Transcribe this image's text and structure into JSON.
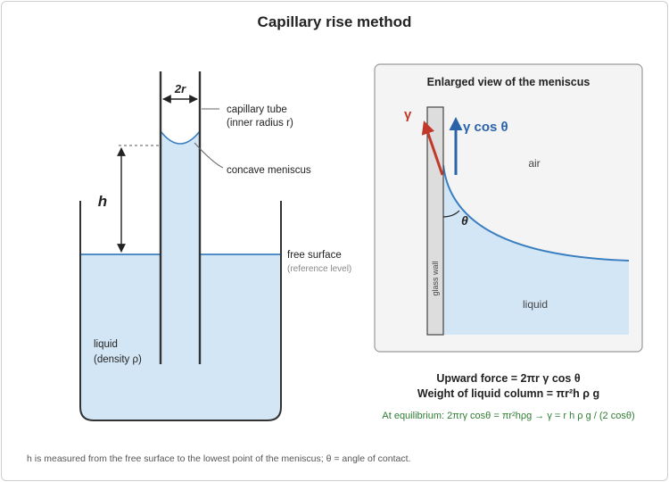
{
  "title": "Capillary rise method",
  "left": {
    "radius_label": "2r",
    "h_label": "h",
    "tube_label_1": "capillary tube",
    "tube_label_2": "(inner radius r)",
    "meniscus_label": "concave meniscus",
    "free_surface_label": "free surface",
    "reference_label": "(reference level)",
    "liquid_label_1": "liquid",
    "liquid_label_2": "(density ρ)"
  },
  "inset": {
    "title": "Enlarged view of the meniscus",
    "gamma_label": "γ",
    "gamma_cos_label": "γ cos θ",
    "air_label": "air",
    "theta_label": "θ",
    "wall_label": "glass wall",
    "liquid_label": "liquid"
  },
  "equations": {
    "upward_force": "Upward force = 2πr γ cos θ",
    "weight": "Weight of liquid column = πr²h ρ g",
    "equilibrium": "At equilibrium: 2πrγ cosθ = πr²hρg → γ = r h ρ g / (2 cosθ)"
  },
  "footnote": "h is measured from the free surface to the lowest point of the meniscus; θ = angle of contact.",
  "colors": {
    "liquid_fill": "#d3e6f6",
    "liquid_line": "#3a7fc0",
    "gamma_arrow": "#c0392b",
    "gamma_cos_arrow": "#2a63a8",
    "equilibrium_text": "#2e7d32",
    "wall_fill": "#dddddd",
    "inset_bg": "#f4f4f4"
  }
}
